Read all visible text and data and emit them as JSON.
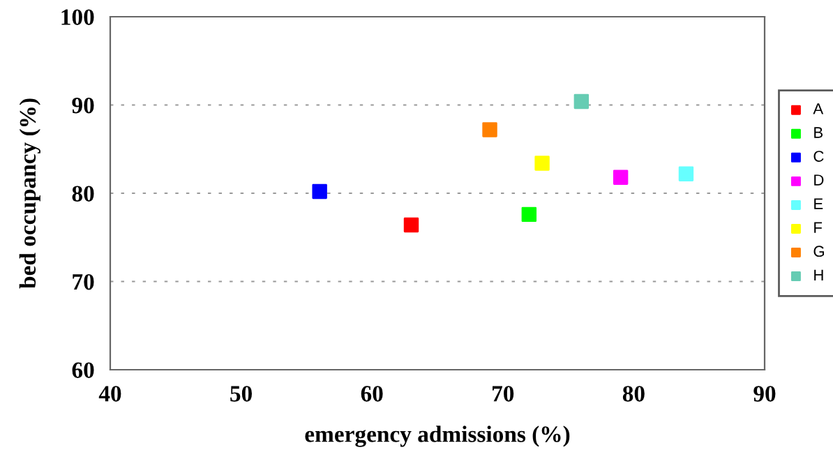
{
  "chart_data": {
    "type": "scatter",
    "xlabel": "emergency admissions (%)",
    "ylabel": "bed occupancy (%)",
    "xlim": [
      40,
      90
    ],
    "xticks": [
      40,
      50,
      60,
      70,
      80,
      90
    ],
    "ylim": [
      60,
      100
    ],
    "yticks": [
      60,
      70,
      80,
      90,
      100
    ],
    "grid": "y",
    "legend": "right",
    "marker": "square",
    "series": [
      {
        "name": "A",
        "color": "#ff0000",
        "x": [
          63
        ],
        "values": [
          76.4
        ]
      },
      {
        "name": "B",
        "color": "#00ff00",
        "x": [
          72
        ],
        "values": [
          77.6
        ]
      },
      {
        "name": "C",
        "color": "#0000ff",
        "x": [
          56
        ],
        "values": [
          80.2
        ]
      },
      {
        "name": "D",
        "color": "#ff00ff",
        "x": [
          79
        ],
        "values": [
          81.8
        ]
      },
      {
        "name": "E",
        "color": "#66ffff",
        "x": [
          84
        ],
        "values": [
          82.2
        ]
      },
      {
        "name": "F",
        "color": "#ffff00",
        "x": [
          73
        ],
        "values": [
          83.4
        ]
      },
      {
        "name": "G",
        "color": "#ff8000",
        "x": [
          69
        ],
        "values": [
          87.2
        ]
      },
      {
        "name": "H",
        "color": "#66ccb3",
        "x": [
          76
        ],
        "values": [
          90.4
        ]
      }
    ]
  }
}
